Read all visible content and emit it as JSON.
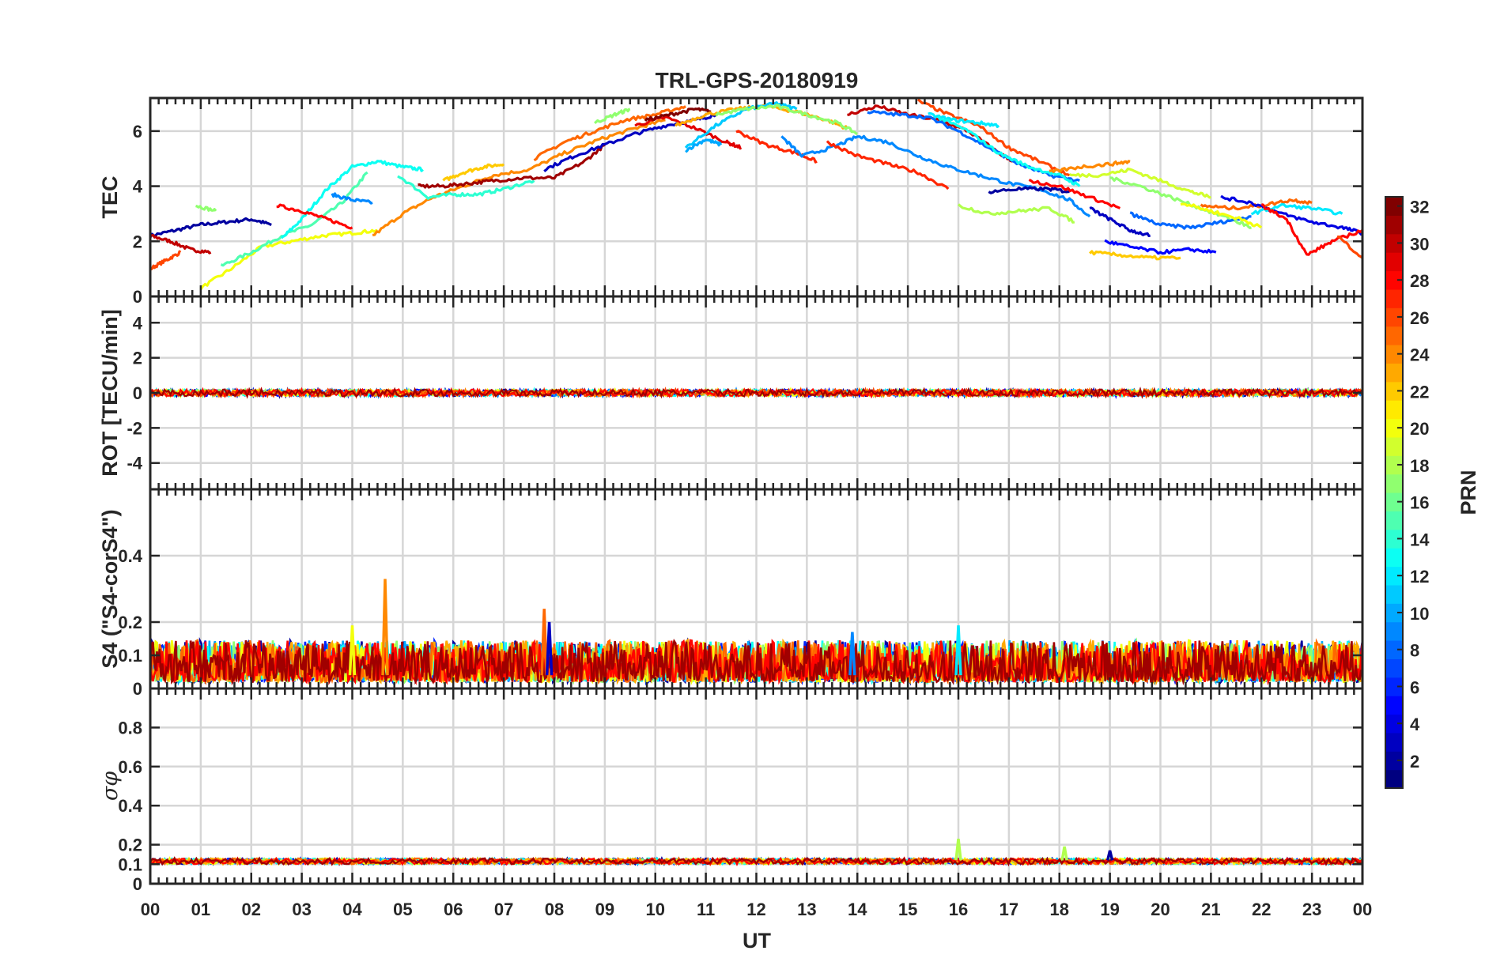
{
  "figure": {
    "title": "TRL-GPS-20180919",
    "xlabel": "UT",
    "x_tick_labels": [
      "00",
      "01",
      "02",
      "03",
      "04",
      "05",
      "06",
      "07",
      "08",
      "09",
      "10",
      "11",
      "12",
      "13",
      "14",
      "15",
      "16",
      "17",
      "18",
      "19",
      "20",
      "21",
      "22",
      "23",
      "00"
    ]
  },
  "colorbar": {
    "label": "PRN",
    "range": [
      1,
      32
    ],
    "tick_labels": [
      "2",
      "4",
      "6",
      "8",
      "10",
      "12",
      "14",
      "16",
      "18",
      "20",
      "22",
      "24",
      "26",
      "28",
      "30",
      "32"
    ],
    "colormap": "jet",
    "colors": [
      "#00008f",
      "#0000ff",
      "#00ffff",
      "#ffff00",
      "#ff0000",
      "#800000"
    ]
  },
  "chart_data": [
    {
      "type": "line",
      "panel": "TEC",
      "ylabel": "TEC",
      "xlim": [
        0,
        24
      ],
      "ylim": [
        0,
        7.2
      ],
      "y_tick_labels": [
        "0",
        "2",
        "4",
        "6"
      ],
      "grid": true,
      "series": [
        {
          "prn": 2,
          "x": [
            0.0,
            0.5,
            1.0,
            1.5,
            2.0,
            2.4
          ],
          "y": [
            2.2,
            2.4,
            2.6,
            2.7,
            2.8,
            2.6
          ]
        },
        {
          "prn": 30,
          "x": [
            0.0,
            0.4,
            0.8,
            1.2
          ],
          "y": [
            2.2,
            2.0,
            1.7,
            1.6
          ]
        },
        {
          "prn": 26,
          "x": [
            0.0,
            0.3,
            0.6
          ],
          "y": [
            1.0,
            1.3,
            1.6
          ]
        },
        {
          "prn": 20,
          "x": [
            1.0,
            1.6,
            2.2,
            2.8,
            3.4,
            4.0,
            4.5
          ],
          "y": [
            0.3,
            1.0,
            1.8,
            2.0,
            2.2,
            2.3,
            2.4
          ]
        },
        {
          "prn": 15,
          "x": [
            1.4,
            2.0,
            2.6,
            3.2,
            3.8,
            4.3
          ],
          "y": [
            1.1,
            1.6,
            2.2,
            2.6,
            3.4,
            4.5
          ]
        },
        {
          "prn": 13,
          "x": [
            2.6,
            3.0,
            3.5,
            4.0,
            4.5,
            5.0,
            5.4
          ],
          "y": [
            2.1,
            2.8,
            3.9,
            4.7,
            4.9,
            4.7,
            4.6
          ]
        },
        {
          "prn": 28,
          "x": [
            2.5,
            3.0,
            3.5,
            4.0
          ],
          "y": [
            3.3,
            3.1,
            2.8,
            2.5
          ]
        },
        {
          "prn": 17,
          "x": [
            0.9,
            1.3
          ],
          "y": [
            3.3,
            3.1
          ]
        },
        {
          "prn": 9,
          "x": [
            3.6,
            4.0,
            4.4
          ],
          "y": [
            3.7,
            3.5,
            3.4
          ]
        },
        {
          "prn": 24,
          "x": [
            4.4,
            5.0,
            5.6,
            6.2,
            6.8,
            7.5,
            8.2,
            8.9,
            9.6,
            10.2
          ],
          "y": [
            2.2,
            3.0,
            3.6,
            4.0,
            4.4,
            4.6,
            5.2,
            5.7,
            6.1,
            6.4
          ]
        },
        {
          "prn": 14,
          "x": [
            4.9,
            5.5,
            6.0,
            6.5,
            7.0,
            7.6
          ],
          "y": [
            4.4,
            3.6,
            3.7,
            3.7,
            3.9,
            4.2
          ]
        },
        {
          "prn": 31,
          "x": [
            5.3,
            5.8,
            6.3,
            6.8,
            7.4,
            8.0,
            8.6,
            9.0
          ],
          "y": [
            4.0,
            4.0,
            4.1,
            4.2,
            4.3,
            4.3,
            4.9,
            5.5
          ]
        },
        {
          "prn": 22,
          "x": [
            5.8,
            6.2,
            6.6,
            7.0
          ],
          "y": [
            4.2,
            4.5,
            4.7,
            4.8
          ]
        },
        {
          "prn": 3,
          "x": [
            7.8,
            8.4,
            9.0,
            9.6,
            10.2,
            10.8,
            11.2
          ],
          "y": [
            4.6,
            5.1,
            5.5,
            5.9,
            6.2,
            6.4,
            6.6
          ]
        },
        {
          "prn": 25,
          "x": [
            7.6,
            8.2,
            8.8,
            9.4,
            10.0,
            10.6
          ],
          "y": [
            5.0,
            5.6,
            6.0,
            6.4,
            6.6,
            6.9
          ]
        },
        {
          "prn": 17,
          "x": [
            8.8,
            9.2,
            9.5
          ],
          "y": [
            6.3,
            6.6,
            6.8
          ]
        },
        {
          "prn": 29,
          "x": [
            9.6,
            10.2,
            10.8,
            11.4,
            11.7
          ],
          "y": [
            6.2,
            6.5,
            6.1,
            5.6,
            5.4
          ]
        },
        {
          "prn": 32,
          "x": [
            9.8,
            10.3,
            10.8,
            11.1
          ],
          "y": [
            6.4,
            6.6,
            6.8,
            6.7
          ]
        },
        {
          "prn": 23,
          "x": [
            10.4,
            11.0,
            11.6,
            12.2,
            12.8,
            13.4,
            13.8
          ],
          "y": [
            6.2,
            6.6,
            6.8,
            6.9,
            6.7,
            6.4,
            6.1
          ]
        },
        {
          "prn": 11,
          "x": [
            10.6,
            11.2,
            11.8,
            12.4,
            12.8
          ],
          "y": [
            5.4,
            6.2,
            6.8,
            7.0,
            6.8
          ]
        },
        {
          "prn": 10,
          "x": [
            10.6,
            11.0,
            11.3
          ],
          "y": [
            5.3,
            5.7,
            5.5
          ]
        },
        {
          "prn": 17,
          "x": [
            11.2,
            11.8,
            12.4,
            13.0,
            13.6,
            14.0
          ],
          "y": [
            6.6,
            6.8,
            6.9,
            6.6,
            6.3,
            5.9
          ]
        },
        {
          "prn": 27,
          "x": [
            11.6,
            12.2,
            12.8,
            13.2
          ],
          "y": [
            6.0,
            5.5,
            5.2,
            4.9
          ]
        },
        {
          "prn": 9,
          "x": [
            12.5,
            12.9,
            13.5,
            14.0,
            14.6,
            15.2,
            15.8,
            16.4,
            17.0,
            17.6,
            18.2,
            18.6
          ],
          "y": [
            5.8,
            5.1,
            5.4,
            5.8,
            5.6,
            5.1,
            4.7,
            4.4,
            4.1,
            3.9,
            3.5,
            2.9
          ]
        },
        {
          "prn": 27,
          "x": [
            13.4,
            14.0,
            14.6,
            15.2,
            15.8
          ],
          "y": [
            5.6,
            5.1,
            4.8,
            4.5,
            3.9
          ]
        },
        {
          "prn": 30,
          "x": [
            13.8,
            14.4,
            15.0,
            15.6,
            16.2,
            16.8,
            17.2
          ],
          "y": [
            6.6,
            6.9,
            6.6,
            6.4,
            6.0,
            5.2,
            4.8
          ]
        },
        {
          "prn": 26,
          "x": [
            15.2,
            15.8,
            16.4,
            17.0,
            17.6,
            18.2
          ],
          "y": [
            7.1,
            6.6,
            6.2,
            5.4,
            4.9,
            4.4
          ]
        },
        {
          "prn": 12,
          "x": [
            15.4,
            15.9,
            16.4,
            16.8
          ],
          "y": [
            6.6,
            6.4,
            6.3,
            6.2
          ]
        },
        {
          "prn": 8,
          "x": [
            14.2,
            14.8,
            15.4,
            16.0,
            16.6,
            17.2,
            17.8,
            18.4
          ],
          "y": [
            6.7,
            6.6,
            6.5,
            6.0,
            5.4,
            4.8,
            4.4,
            4.2
          ]
        },
        {
          "prn": 13,
          "x": [
            15.6,
            16.2,
            16.8,
            17.4,
            18.0,
            18.4
          ],
          "y": [
            6.5,
            6.0,
            5.2,
            4.7,
            4.4,
            4.0
          ]
        },
        {
          "prn": 2,
          "x": [
            16.6,
            17.2,
            17.8,
            18.2
          ],
          "y": [
            3.8,
            3.9,
            3.9,
            3.8
          ]
        },
        {
          "prn": 18,
          "x": [
            16.0,
            16.6,
            17.2,
            17.8,
            18.3
          ],
          "y": [
            3.3,
            3.0,
            3.1,
            3.2,
            2.7
          ]
        },
        {
          "prn": 28,
          "x": [
            17.4,
            18.0,
            18.6,
            19.2
          ],
          "y": [
            4.2,
            4.0,
            3.6,
            3.2
          ]
        },
        {
          "prn": 3,
          "x": [
            18.6,
            19.0,
            19.4,
            19.8
          ],
          "y": [
            3.2,
            2.8,
            2.4,
            2.2
          ]
        },
        {
          "prn": 24,
          "x": [
            17.8,
            18.4,
            19.0,
            19.4
          ],
          "y": [
            4.5,
            4.7,
            4.8,
            4.9
          ]
        },
        {
          "prn": 19,
          "x": [
            18.2,
            18.8,
            19.4,
            20.0,
            20.6,
            21.0
          ],
          "y": [
            4.4,
            4.4,
            4.6,
            4.2,
            3.8,
            3.6
          ]
        },
        {
          "prn": 17,
          "x": [
            19.0,
            19.6,
            20.2,
            20.8,
            21.4,
            21.8
          ],
          "y": [
            4.3,
            4.0,
            3.6,
            3.2,
            2.8,
            2.5
          ]
        },
        {
          "prn": 5,
          "x": [
            18.9,
            19.4,
            20.0,
            20.6,
            21.1
          ],
          "y": [
            2.0,
            1.8,
            1.6,
            1.7,
            1.6
          ]
        },
        {
          "prn": 22,
          "x": [
            18.6,
            19.2,
            19.8,
            20.4
          ],
          "y": [
            1.6,
            1.5,
            1.4,
            1.4
          ]
        },
        {
          "prn": 8,
          "x": [
            19.4,
            20.0,
            20.6,
            21.2,
            21.8
          ],
          "y": [
            3.0,
            2.6,
            2.5,
            2.7,
            2.9
          ]
        },
        {
          "prn": 20,
          "x": [
            20.4,
            21.0,
            21.6,
            22.0
          ],
          "y": [
            3.4,
            3.1,
            2.8,
            2.5
          ]
        },
        {
          "prn": 25,
          "x": [
            20.8,
            21.4,
            22.0,
            22.6,
            23.0
          ],
          "y": [
            3.3,
            3.2,
            3.3,
            3.5,
            3.4
          ]
        },
        {
          "prn": 4,
          "x": [
            21.2,
            21.8,
            22.4,
            23.0,
            23.6,
            24.0
          ],
          "y": [
            3.6,
            3.4,
            3.0,
            2.7,
            2.5,
            2.3
          ]
        },
        {
          "prn": 12,
          "x": [
            21.8,
            22.4,
            23.0,
            23.6
          ],
          "y": [
            3.0,
            3.3,
            3.2,
            3.0
          ]
        },
        {
          "prn": 28,
          "x": [
            22.0,
            22.5,
            22.9,
            23.4,
            24.0
          ],
          "y": [
            3.3,
            2.8,
            1.5,
            2.0,
            2.4
          ]
        },
        {
          "prn": 26,
          "x": [
            23.5,
            24.0
          ],
          "y": [
            2.2,
            1.4
          ]
        }
      ]
    },
    {
      "type": "line",
      "panel": "ROT",
      "ylabel": "ROT [TECU/min]",
      "xlim": [
        0,
        24
      ],
      "ylim": [
        -5.5,
        5.5
      ],
      "y_tick_labels": [
        "-4",
        "-2",
        "0",
        "2",
        "4"
      ],
      "grid": true,
      "note_values": "all PRN traces lie within approximately -0.2 to 0.2 TECU/min",
      "band": {
        "x": [
          0,
          24
        ],
        "y_min": -0.2,
        "y_max": 0.2
      }
    },
    {
      "type": "line",
      "panel": "S4",
      "ylabel": "S4 (\"S4-corS4\")",
      "xlim": [
        0,
        24
      ],
      "ylim": [
        0,
        0.6
      ],
      "y_tick_labels": [
        "0",
        "0.1",
        "0.2",
        "0.4"
      ],
      "grid": true,
      "baseline_range": [
        0.02,
        0.12
      ],
      "spikes": [
        {
          "prn": 24,
          "x": 4.65,
          "y": 0.33
        },
        {
          "prn": 25,
          "x": 7.8,
          "y": 0.24
        },
        {
          "prn": 20,
          "x": 4.0,
          "y": 0.19
        },
        {
          "prn": 3,
          "x": 7.9,
          "y": 0.2
        },
        {
          "prn": 12,
          "x": 16.0,
          "y": 0.19
        },
        {
          "prn": 9,
          "x": 13.9,
          "y": 0.17
        }
      ]
    },
    {
      "type": "line",
      "panel": "sigma_phi",
      "ylabel": "σφ",
      "xlim": [
        0,
        24
      ],
      "ylim": [
        0,
        1.0
      ],
      "y_tick_labels": [
        "0",
        "0.1",
        "0.2",
        "0.4",
        "0.6",
        "0.8"
      ],
      "grid": true,
      "baseline_range": [
        0.1,
        0.15
      ],
      "spikes": [
        {
          "prn": 18,
          "x": 16.0,
          "y": 0.23
        },
        {
          "prn": 18,
          "x": 18.1,
          "y": 0.19
        },
        {
          "prn": 2,
          "x": 19.0,
          "y": 0.17
        }
      ]
    }
  ]
}
